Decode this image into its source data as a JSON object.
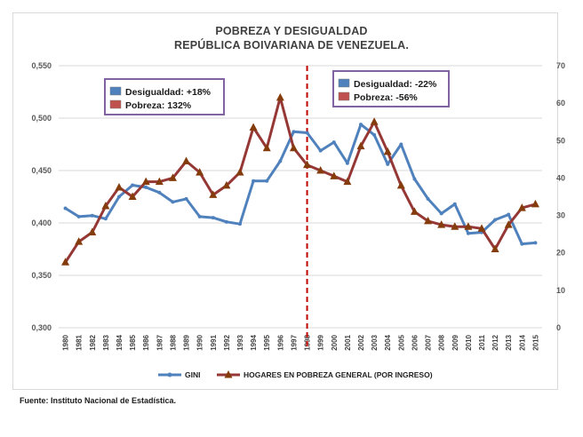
{
  "chart_data": {
    "type": "line",
    "title": "POBREZA Y DESIGUALDAD",
    "subtitle": "REPÚBLICA BOIVARIANA DE VENEZUELA.",
    "x": [
      "1980",
      "1981",
      "1982",
      "1983",
      "1984",
      "1985",
      "1986",
      "1987",
      "1988",
      "1989",
      "1990",
      "1991",
      "1992",
      "1993",
      "1994",
      "1995",
      "1996",
      "1997",
      "1998",
      "1999",
      "2000",
      "2001",
      "2002",
      "2003",
      "2004",
      "2005",
      "2006",
      "2007",
      "2008",
      "2009",
      "2010",
      "2011",
      "2012",
      "2013",
      "2014",
      "2015"
    ],
    "left_axis": {
      "ylim": [
        0.3,
        0.55
      ],
      "ticks": [
        "0,300",
        "0,350",
        "0,400",
        "0,450",
        "0,500",
        "0,550"
      ],
      "tick_values": [
        0.3,
        0.35,
        0.4,
        0.45,
        0.5,
        0.55
      ]
    },
    "right_axis": {
      "ylim": [
        0,
        70
      ],
      "ticks": [
        "0",
        "10",
        "20",
        "30",
        "40",
        "50",
        "60",
        "70"
      ],
      "tick_values": [
        0,
        10,
        20,
        30,
        40,
        50,
        60,
        70
      ]
    },
    "series": [
      {
        "name": "GINI",
        "axis": "left",
        "color": "#4f81bd",
        "values": [
          0.414,
          0.406,
          0.407,
          0.404,
          0.425,
          0.436,
          0.434,
          0.429,
          0.42,
          0.423,
          0.406,
          0.405,
          0.401,
          0.399,
          0.44,
          0.44,
          0.459,
          0.487,
          0.486,
          0.469,
          0.477,
          0.457,
          0.494,
          0.484,
          0.456,
          0.475,
          0.442,
          0.423,
          0.409,
          0.418,
          0.39,
          0.391,
          0.403,
          0.408,
          0.38,
          0.381
        ]
      },
      {
        "name": "HOGARES EN POBREZA GENERAL (POR INGRESO)",
        "axis": "right",
        "color": "#953735",
        "marker_color": "#843c0c",
        "values": [
          17.5,
          23,
          25.5,
          32.5,
          37.5,
          35,
          39,
          39,
          40,
          44.5,
          41.5,
          35.5,
          38,
          41.5,
          53.5,
          48,
          61.5,
          48,
          43.5,
          42,
          40.5,
          39,
          48.5,
          55,
          47,
          38,
          31,
          28.5,
          27.5,
          27,
          27,
          26.5,
          21,
          27.5,
          32,
          33
        ]
      }
    ],
    "divider_year": "1998",
    "legend": {
      "position": "bottom",
      "items": [
        "GINI",
        "HOGARES EN POBREZA GENERAL (POR INGRESO)"
      ]
    },
    "annotations": [
      {
        "lines": [
          {
            "text": "Desigualdad: +18%",
            "color": "#4f81bd"
          },
          {
            "text": "Pobreza: 132%",
            "color": "#c0504d"
          }
        ]
      },
      {
        "lines": [
          {
            "text": "Desigualdad: -22%",
            "color": "#4f81bd"
          },
          {
            "text": "Pobreza: -56%",
            "color": "#c0504d"
          }
        ]
      }
    ],
    "grid": true
  },
  "source": "Fuente: Instituto Nacional de Estadística."
}
